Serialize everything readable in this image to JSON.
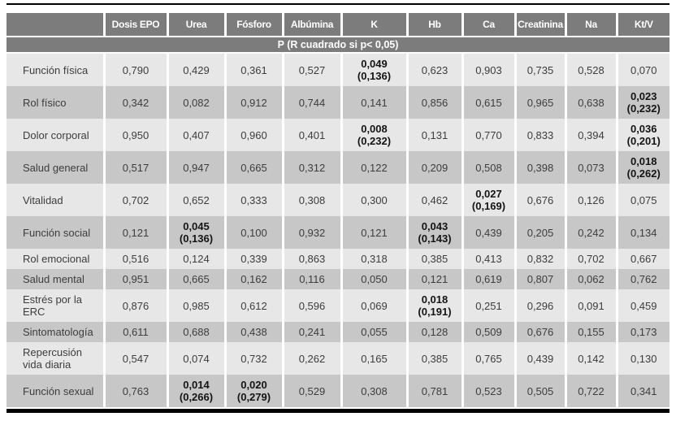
{
  "table": {
    "columns": [
      "",
      "Dosis EPO",
      "Urea",
      "Fósforo",
      "Albúmina",
      "K",
      "Hb",
      "Ca",
      "Creatinina",
      "Na",
      "Kt/V"
    ],
    "section_header": "P (R cuadrado si p< 0,05)",
    "rows": [
      {
        "label": "Función física",
        "cells": [
          {
            "v": "0,790"
          },
          {
            "v": "0,429"
          },
          {
            "v": "0,361"
          },
          {
            "v": "0,527"
          },
          {
            "v": "0,049",
            "r2": "(0,136)"
          },
          {
            "v": "0,623"
          },
          {
            "v": "0,903"
          },
          {
            "v": "0,735"
          },
          {
            "v": "0,528"
          },
          {
            "v": "0,070"
          }
        ]
      },
      {
        "label": "Rol físico",
        "cells": [
          {
            "v": "0,342"
          },
          {
            "v": "0,082"
          },
          {
            "v": "0,912"
          },
          {
            "v": "0,744"
          },
          {
            "v": "0,141"
          },
          {
            "v": "0,856"
          },
          {
            "v": "0,615"
          },
          {
            "v": "0,965"
          },
          {
            "v": "0,638"
          },
          {
            "v": "0,023",
            "r2": "(0,232)"
          }
        ]
      },
      {
        "label": "Dolor corporal",
        "cells": [
          {
            "v": "0,950"
          },
          {
            "v": "0,407"
          },
          {
            "v": "0,960"
          },
          {
            "v": "0,401"
          },
          {
            "v": "0,008",
            "r2": "(0,232)"
          },
          {
            "v": "0,131"
          },
          {
            "v": "0,770"
          },
          {
            "v": "0,833"
          },
          {
            "v": "0,394"
          },
          {
            "v": "0,036",
            "r2": "(0,201)"
          }
        ]
      },
      {
        "label": "Salud general",
        "cells": [
          {
            "v": "0,517"
          },
          {
            "v": "0,947"
          },
          {
            "v": "0,665"
          },
          {
            "v": "0,312"
          },
          {
            "v": "0,122"
          },
          {
            "v": "0,209"
          },
          {
            "v": "0,508"
          },
          {
            "v": "0,398"
          },
          {
            "v": "0,073"
          },
          {
            "v": "0,018",
            "r2": "(0,262)"
          }
        ]
      },
      {
        "label": "Vitalidad",
        "cells": [
          {
            "v": "0,702"
          },
          {
            "v": "0,652"
          },
          {
            "v": "0,333"
          },
          {
            "v": "0,308"
          },
          {
            "v": "0,300"
          },
          {
            "v": "0,462"
          },
          {
            "v": "0,027",
            "r2": "(0,169)"
          },
          {
            "v": "0,676"
          },
          {
            "v": "0,126"
          },
          {
            "v": "0,075"
          }
        ]
      },
      {
        "label": "Función social",
        "cells": [
          {
            "v": "0,121"
          },
          {
            "v": "0,045",
            "r2": "(0,136)"
          },
          {
            "v": "0,100"
          },
          {
            "v": "0,932"
          },
          {
            "v": "0,121"
          },
          {
            "v": "0,043",
            "r2": "(0,143)"
          },
          {
            "v": "0,439"
          },
          {
            "v": "0,205"
          },
          {
            "v": "0,242"
          },
          {
            "v": "0,134"
          }
        ]
      },
      {
        "label": "Rol emocional",
        "cells": [
          {
            "v": "0,516"
          },
          {
            "v": "0,124"
          },
          {
            "v": "0,339"
          },
          {
            "v": "0,863"
          },
          {
            "v": "0,318"
          },
          {
            "v": "0,385"
          },
          {
            "v": "0,413"
          },
          {
            "v": "0,832"
          },
          {
            "v": "0,702"
          },
          {
            "v": "0,667"
          }
        ]
      },
      {
        "label": "Salud mental",
        "cells": [
          {
            "v": "0,951"
          },
          {
            "v": "0,665"
          },
          {
            "v": "0,162"
          },
          {
            "v": "0,116"
          },
          {
            "v": "0,050"
          },
          {
            "v": "0,121"
          },
          {
            "v": "0,619"
          },
          {
            "v": "0,807"
          },
          {
            "v": "0,062"
          },
          {
            "v": "0,762"
          }
        ]
      },
      {
        "label": "Estrés por la ERC",
        "cells": [
          {
            "v": "0,876"
          },
          {
            "v": "0,985"
          },
          {
            "v": "0,612"
          },
          {
            "v": "0,596"
          },
          {
            "v": "0,069"
          },
          {
            "v": "0,018",
            "r2": "(0,191)"
          },
          {
            "v": "0,251"
          },
          {
            "v": "0,296"
          },
          {
            "v": "0,091"
          },
          {
            "v": "0,459"
          }
        ]
      },
      {
        "label": "Sintomatología",
        "cells": [
          {
            "v": "0,611"
          },
          {
            "v": "0,688"
          },
          {
            "v": "0,438"
          },
          {
            "v": "0,241"
          },
          {
            "v": "0,055"
          },
          {
            "v": "0,128"
          },
          {
            "v": "0,509"
          },
          {
            "v": "0,676"
          },
          {
            "v": "0,155"
          },
          {
            "v": "0,173"
          }
        ]
      },
      {
        "label": "Repercusión vida diaria",
        "cells": [
          {
            "v": "0,547"
          },
          {
            "v": "0,074"
          },
          {
            "v": "0,732"
          },
          {
            "v": "0,262"
          },
          {
            "v": "0,165"
          },
          {
            "v": "0,385"
          },
          {
            "v": "0,765"
          },
          {
            "v": "0,439"
          },
          {
            "v": "0,142"
          },
          {
            "v": "0,130"
          }
        ]
      },
      {
        "label": "Función sexual",
        "cells": [
          {
            "v": "0,763"
          },
          {
            "v": "0,014",
            "r2": "(0,266)"
          },
          {
            "v": "0,020",
            "r2": "(0,279)"
          },
          {
            "v": "0,529"
          },
          {
            "v": "0,308"
          },
          {
            "v": "0,781"
          },
          {
            "v": "0,523"
          },
          {
            "v": "0,505"
          },
          {
            "v": "0,722"
          },
          {
            "v": "0,341"
          }
        ]
      }
    ]
  },
  "colors": {
    "header_bg": "#7c7c7c",
    "header_text": "#ffffff",
    "row_light": "#e7e7e7",
    "row_dark": "#c7c7c7",
    "body_text": "#3d3d3d",
    "significant_text": "#141414",
    "rule": "#000000"
  }
}
